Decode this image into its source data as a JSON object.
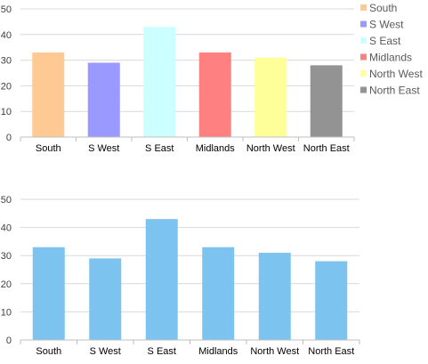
{
  "chart_data": [
    {
      "type": "bar",
      "categories": [
        "South",
        "S West",
        "S East",
        "Midlands",
        "North West",
        "North East"
      ],
      "values": [
        33,
        29,
        43,
        33,
        31,
        28
      ],
      "ylim": [
        0,
        50
      ],
      "yticks": [
        0,
        10,
        20,
        30,
        40,
        50
      ],
      "grid": true,
      "colors": [
        "#FFC993",
        "#9999FF",
        "#CCFFFF",
        "#FF8080",
        "#FFFF99",
        "#939393"
      ],
      "legend": {
        "placement": "right",
        "entries": [
          "South",
          "S West",
          "S East",
          "Midlands",
          "North West",
          "North East"
        ]
      }
    },
    {
      "type": "bar",
      "categories": [
        "South",
        "S West",
        "S East",
        "Midlands",
        "North West",
        "North East"
      ],
      "values": [
        33,
        29,
        43,
        33,
        31,
        28
      ],
      "ylim": [
        0,
        50
      ],
      "yticks": [
        0,
        10,
        20,
        30,
        40,
        50
      ],
      "grid": true,
      "colors": [
        "#7DC3F0"
      ],
      "legend": null
    }
  ]
}
